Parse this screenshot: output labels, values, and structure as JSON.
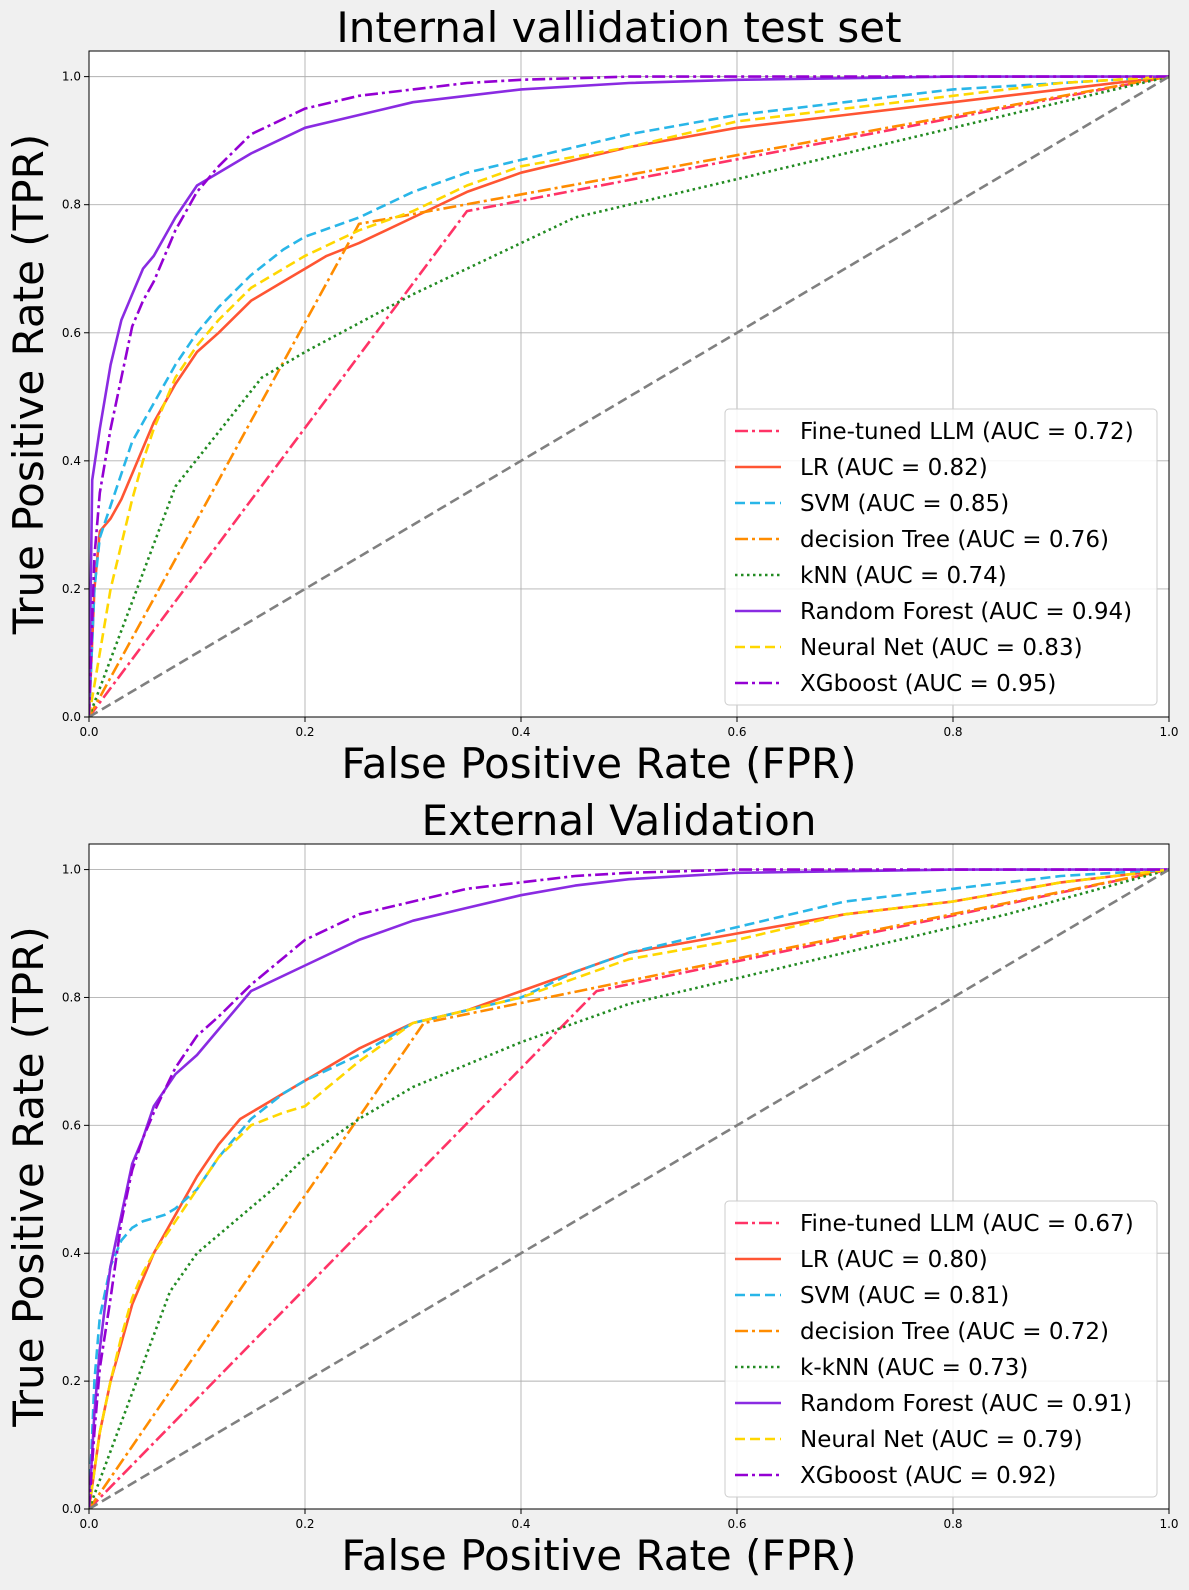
{
  "chart_data": [
    {
      "type": "line",
      "title": "Internal vallidation test set",
      "xlabel": "False Positive Rate (FPR)",
      "ylabel": "True Positive Rate (TPR)",
      "xlim": [
        0,
        1
      ],
      "ylim": [
        0,
        1.04
      ],
      "xticks": [
        "0.0",
        "0.2",
        "0.4",
        "0.6",
        "0.8",
        "1.0"
      ],
      "yticks": [
        "0.0",
        "0.2",
        "0.4",
        "0.6",
        "0.8",
        "1.0"
      ],
      "grid": true,
      "legend_position": "lower right",
      "series": [
        {
          "name": "Fine-tuned LLM (AUC = 0.72)",
          "color": "#ff3366",
          "style": "dashdot",
          "x": [
            0,
            0.35,
            1
          ],
          "y": [
            0,
            0.79,
            1
          ]
        },
        {
          "name": "LR (AUC = 0.82)",
          "color": "#ff5533",
          "style": "solid",
          "x": [
            0,
            0.005,
            0.01,
            0.02,
            0.03,
            0.04,
            0.05,
            0.06,
            0.08,
            0.1,
            0.12,
            0.15,
            0.18,
            0.2,
            0.22,
            0.25,
            0.3,
            0.35,
            0.4,
            0.45,
            0.5,
            0.6,
            0.7,
            0.8,
            0.9,
            1.0
          ],
          "y": [
            0,
            0.2,
            0.29,
            0.31,
            0.34,
            0.38,
            0.42,
            0.46,
            0.52,
            0.57,
            0.6,
            0.65,
            0.68,
            0.7,
            0.72,
            0.74,
            0.78,
            0.82,
            0.85,
            0.87,
            0.89,
            0.92,
            0.94,
            0.96,
            0.98,
            1.0
          ]
        },
        {
          "name": "SVM (AUC = 0.85)",
          "color": "#29b6e8",
          "style": "dashed",
          "x": [
            0,
            0.005,
            0.01,
            0.02,
            0.03,
            0.04,
            0.05,
            0.06,
            0.08,
            0.1,
            0.12,
            0.15,
            0.18,
            0.2,
            0.25,
            0.3,
            0.35,
            0.4,
            0.45,
            0.5,
            0.6,
            0.7,
            0.8,
            0.9,
            1.0
          ],
          "y": [
            0,
            0.2,
            0.28,
            0.33,
            0.38,
            0.43,
            0.46,
            0.49,
            0.55,
            0.6,
            0.64,
            0.69,
            0.73,
            0.75,
            0.78,
            0.82,
            0.85,
            0.87,
            0.89,
            0.91,
            0.94,
            0.96,
            0.98,
            0.99,
            1.0
          ]
        },
        {
          "name": "decision Tree (AUC = 0.76)",
          "color": "#ff8c00",
          "style": "dashdot",
          "x": [
            0,
            0.25,
            1
          ],
          "y": [
            0,
            0.77,
            1
          ]
        },
        {
          "name": "kNN (AUC = 0.74)",
          "color": "#228b22",
          "style": "dotted",
          "x": [
            0,
            0.08,
            0.16,
            0.2,
            0.3,
            0.4,
            0.45,
            0.55,
            0.7,
            0.85,
            1.0
          ],
          "y": [
            0,
            0.36,
            0.53,
            0.57,
            0.66,
            0.74,
            0.78,
            0.82,
            0.88,
            0.94,
            1.0
          ]
        },
        {
          "name": "Random Forest (AUC = 0.94)",
          "color": "#8a2be2",
          "style": "solid",
          "x": [
            0,
            0.003,
            0.01,
            0.015,
            0.02,
            0.03,
            0.04,
            0.05,
            0.06,
            0.08,
            0.1,
            0.12,
            0.15,
            0.2,
            0.25,
            0.3,
            0.4,
            0.5,
            0.6,
            0.8,
            1.0
          ],
          "y": [
            0,
            0.37,
            0.45,
            0.5,
            0.55,
            0.62,
            0.66,
            0.7,
            0.72,
            0.78,
            0.83,
            0.85,
            0.88,
            0.92,
            0.94,
            0.96,
            0.98,
            0.99,
            0.995,
            1.0,
            1.0
          ]
        },
        {
          "name": "Neural Net (AUC = 0.83)",
          "color": "#ffd700",
          "style": "dashed",
          "x": [
            0,
            0.01,
            0.02,
            0.03,
            0.04,
            0.05,
            0.06,
            0.08,
            0.1,
            0.12,
            0.15,
            0.18,
            0.2,
            0.25,
            0.3,
            0.35,
            0.4,
            0.5,
            0.6,
            0.7,
            0.8,
            0.9,
            1.0
          ],
          "y": [
            0,
            0.1,
            0.2,
            0.27,
            0.34,
            0.4,
            0.45,
            0.53,
            0.58,
            0.62,
            0.67,
            0.7,
            0.72,
            0.76,
            0.79,
            0.83,
            0.86,
            0.89,
            0.93,
            0.95,
            0.97,
            0.99,
            1.0
          ]
        },
        {
          "name": "XGboost (AUC = 0.95)",
          "color": "#9400d3",
          "style": "dashdot",
          "x": [
            0,
            0.005,
            0.01,
            0.02,
            0.03,
            0.04,
            0.05,
            0.06,
            0.08,
            0.1,
            0.12,
            0.15,
            0.2,
            0.25,
            0.3,
            0.35,
            0.4,
            0.5,
            0.6,
            0.8,
            1.0
          ],
          "y": [
            0,
            0.25,
            0.35,
            0.45,
            0.53,
            0.61,
            0.65,
            0.68,
            0.76,
            0.82,
            0.86,
            0.91,
            0.95,
            0.97,
            0.98,
            0.99,
            0.995,
            1.0,
            1.0,
            1.0,
            1.0
          ]
        },
        {
          "name": "",
          "color": "#808080",
          "style": "dashed",
          "x": [
            0,
            1
          ],
          "y": [
            0,
            1
          ]
        }
      ]
    },
    {
      "type": "line",
      "title": "External Validation",
      "xlabel": "False Positive Rate (FPR)",
      "ylabel": "True Positive Rate (TPR)",
      "xlim": [
        0,
        1
      ],
      "ylim": [
        0,
        1.04
      ],
      "xticks": [
        "0.0",
        "0.2",
        "0.4",
        "0.6",
        "0.8",
        "1.0"
      ],
      "yticks": [
        "0.0",
        "0.2",
        "0.4",
        "0.6",
        "0.8",
        "1.0"
      ],
      "grid": true,
      "legend_position": "lower right",
      "series": [
        {
          "name": "Fine-tuned LLM (AUC = 0.67)",
          "color": "#ff3366",
          "style": "dashdot",
          "x": [
            0,
            0.47,
            1
          ],
          "y": [
            0,
            0.81,
            1
          ]
        },
        {
          "name": "LR (AUC = 0.80)",
          "color": "#ff5533",
          "style": "solid",
          "x": [
            0,
            0.01,
            0.02,
            0.03,
            0.04,
            0.05,
            0.06,
            0.08,
            0.1,
            0.12,
            0.14,
            0.16,
            0.18,
            0.2,
            0.25,
            0.3,
            0.35,
            0.4,
            0.45,
            0.5,
            0.6,
            0.7,
            0.8,
            0.9,
            1.0
          ],
          "y": [
            0,
            0.12,
            0.2,
            0.26,
            0.32,
            0.36,
            0.4,
            0.46,
            0.52,
            0.57,
            0.61,
            0.63,
            0.65,
            0.67,
            0.72,
            0.76,
            0.78,
            0.81,
            0.84,
            0.87,
            0.9,
            0.93,
            0.95,
            0.98,
            1.0
          ]
        },
        {
          "name": "SVM (AUC = 0.81)",
          "color": "#29b6e8",
          "style": "dashed",
          "x": [
            0,
            0.005,
            0.01,
            0.02,
            0.03,
            0.04,
            0.05,
            0.07,
            0.08,
            0.1,
            0.12,
            0.15,
            0.18,
            0.2,
            0.25,
            0.3,
            0.35,
            0.4,
            0.45,
            0.5,
            0.6,
            0.7,
            0.8,
            0.9,
            1.0
          ],
          "y": [
            0,
            0.2,
            0.3,
            0.38,
            0.42,
            0.44,
            0.45,
            0.46,
            0.47,
            0.5,
            0.55,
            0.61,
            0.65,
            0.67,
            0.71,
            0.76,
            0.78,
            0.8,
            0.84,
            0.87,
            0.91,
            0.95,
            0.97,
            0.99,
            1.0
          ]
        },
        {
          "name": "decision Tree (AUC = 0.72)",
          "color": "#ff8c00",
          "style": "dashdot",
          "x": [
            0,
            0.31,
            1
          ],
          "y": [
            0,
            0.76,
            1
          ]
        },
        {
          "name": "k-kNN (AUC = 0.73)",
          "color": "#228b22",
          "style": "dotted",
          "x": [
            0,
            0.075,
            0.1,
            0.17,
            0.2,
            0.25,
            0.3,
            0.4,
            0.5,
            0.6,
            0.7,
            0.85,
            1.0
          ],
          "y": [
            0,
            0.34,
            0.4,
            0.5,
            0.55,
            0.61,
            0.66,
            0.73,
            0.79,
            0.83,
            0.87,
            0.93,
            1.0
          ]
        },
        {
          "name": "Random Forest (AUC = 0.91)",
          "color": "#8a2be2",
          "style": "solid",
          "x": [
            0,
            0.005,
            0.01,
            0.015,
            0.02,
            0.03,
            0.04,
            0.05,
            0.06,
            0.08,
            0.1,
            0.12,
            0.15,
            0.2,
            0.25,
            0.3,
            0.35,
            0.4,
            0.45,
            0.5,
            0.6,
            0.8,
            1.0
          ],
          "y": [
            0,
            0.15,
            0.25,
            0.32,
            0.38,
            0.46,
            0.54,
            0.58,
            0.63,
            0.68,
            0.71,
            0.75,
            0.81,
            0.85,
            0.89,
            0.92,
            0.94,
            0.96,
            0.975,
            0.985,
            0.995,
            1.0,
            1.0
          ]
        },
        {
          "name": "Neural Net (AUC = 0.79)",
          "color": "#ffd700",
          "style": "dashed",
          "x": [
            0,
            0.01,
            0.02,
            0.03,
            0.04,
            0.05,
            0.06,
            0.08,
            0.1,
            0.12,
            0.15,
            0.18,
            0.2,
            0.25,
            0.3,
            0.35,
            0.4,
            0.45,
            0.5,
            0.6,
            0.7,
            0.8,
            0.9,
            1.0
          ],
          "y": [
            0,
            0.12,
            0.2,
            0.27,
            0.33,
            0.37,
            0.4,
            0.45,
            0.5,
            0.55,
            0.6,
            0.62,
            0.63,
            0.7,
            0.76,
            0.78,
            0.8,
            0.83,
            0.86,
            0.89,
            0.93,
            0.95,
            0.98,
            1.0
          ]
        },
        {
          "name": "XGboost (AUC = 0.92)",
          "color": "#9400d3",
          "style": "dashdot",
          "x": [
            0,
            0.005,
            0.01,
            0.02,
            0.03,
            0.04,
            0.05,
            0.06,
            0.08,
            0.1,
            0.12,
            0.15,
            0.2,
            0.25,
            0.3,
            0.35,
            0.4,
            0.45,
            0.5,
            0.6,
            0.8,
            1.0
          ],
          "y": [
            0,
            0.12,
            0.22,
            0.33,
            0.45,
            0.53,
            0.58,
            0.62,
            0.69,
            0.74,
            0.77,
            0.82,
            0.89,
            0.93,
            0.95,
            0.97,
            0.98,
            0.99,
            0.995,
            1.0,
            1.0,
            1.0
          ]
        },
        {
          "name": "",
          "color": "#808080",
          "style": "dashed",
          "x": [
            0,
            1
          ],
          "y": [
            0,
            1
          ]
        }
      ]
    }
  ]
}
